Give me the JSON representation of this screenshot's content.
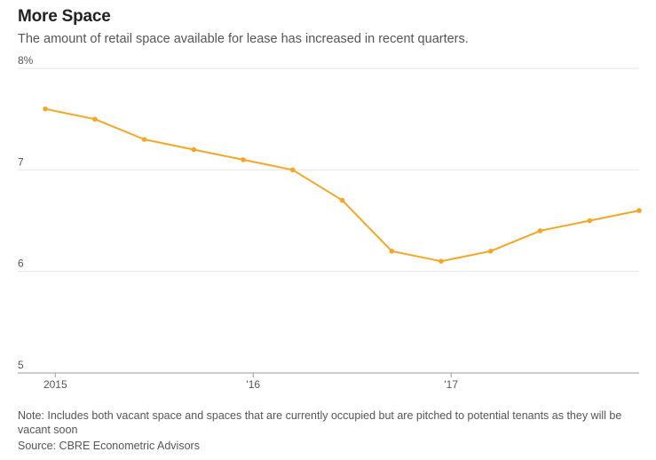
{
  "header": {
    "title": "More Space",
    "subtitle": "The amount of retail space available for lease has increased in recent quarters."
  },
  "footer": {
    "note": "Note: Includes both vacant space and spaces that are currently occupied but are pitched to potential tenants as they will be vacant soon",
    "source": "Source: CBRE Econometric Advisors"
  },
  "colors": {
    "line": "#f5a623",
    "grid": "#e6e6e6",
    "axis": "#999999"
  },
  "chart_data": {
    "type": "line",
    "title": "More Space",
    "subtitle": "The amount of retail space available for lease has increased in recent quarters.",
    "xlabel": "",
    "ylabel": "",
    "ylim": [
      5,
      8
    ],
    "xlim": [
      2014.9,
      2017.95
    ],
    "y_ticks": [
      {
        "value": 8,
        "label": "8%"
      },
      {
        "value": 7,
        "label": "7"
      },
      {
        "value": 6,
        "label": "6"
      },
      {
        "value": 5,
        "label": "5"
      }
    ],
    "x_ticks": [
      {
        "value": 2015,
        "label": "2015"
      },
      {
        "value": 2016,
        "label": "'16"
      },
      {
        "value": 2017,
        "label": "'17"
      }
    ],
    "grid": true,
    "legend": "none",
    "series": [
      {
        "x": [
          "2014 Q4",
          "2015 Q1",
          "2015 Q2",
          "2015 Q3",
          "2015 Q4",
          "2016 Q1",
          "2016 Q2",
          "2016 Q3",
          "2016 Q4",
          "2017 Q1",
          "2017 Q2",
          "2017 Q3",
          "2017 Q4"
        ],
        "values": [
          7.6,
          7.5,
          7.3,
          7.2,
          7.1,
          7.0,
          6.7,
          6.2,
          6.1,
          6.2,
          6.4,
          6.5,
          6.6
        ]
      }
    ]
  }
}
